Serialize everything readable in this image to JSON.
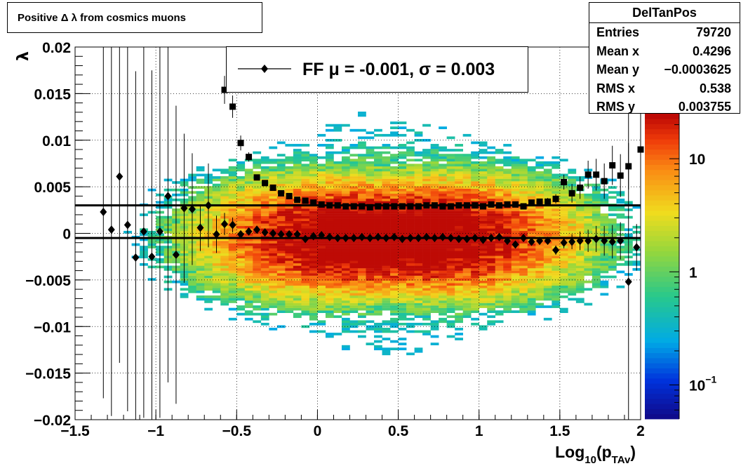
{
  "chart_data": {
    "type": "heatmap",
    "title": "Positive Δ λ from cosmics muons",
    "xlabel_main": "Log",
    "xlabel_sub1": "10",
    "xlabel_mid": "(p",
    "xlabel_sub2": "TAv",
    "xlabel_end": ")",
    "ylabel": "λ",
    "xlim": [
      -1.5,
      2.0
    ],
    "ylim": [
      -0.02,
      0.02
    ],
    "xticks": [
      {
        "v": -1.5,
        "label": "−1.5"
      },
      {
        "v": -1.0,
        "label": "−1"
      },
      {
        "v": -0.5,
        "label": "−0.5"
      },
      {
        "v": 0.0,
        "label": "0"
      },
      {
        "v": 0.5,
        "label": "0.5"
      },
      {
        "v": 1.0,
        "label": "1"
      },
      {
        "v": 1.5,
        "label": "1.5"
      },
      {
        "v": 2.0,
        "label": "2"
      }
    ],
    "yticks": [
      {
        "v": 0.02,
        "label": "0.02"
      },
      {
        "v": 0.015,
        "label": "0.015"
      },
      {
        "v": 0.01,
        "label": "0.01"
      },
      {
        "v": 0.005,
        "label": "0.005"
      },
      {
        "v": 0.0,
        "label": "0"
      },
      {
        "v": -0.005,
        "label": "−0.005"
      },
      {
        "v": -0.01,
        "label": "−0.01"
      },
      {
        "v": -0.015,
        "label": "−0.015"
      },
      {
        "v": -0.02,
        "label": "−0.02"
      }
    ],
    "grid": true,
    "colorbar": {
      "scale": "log",
      "zlim": [
        0.05,
        25
      ],
      "ticks": [
        {
          "v": 10,
          "label": "10",
          "sup": ""
        },
        {
          "v": 1,
          "label": "1",
          "sup": ""
        },
        {
          "v": 0.1,
          "label": "10",
          "sup": "−1"
        }
      ]
    },
    "stats": {
      "name": "DelTanPos",
      "rows": [
        {
          "label": "Entries",
          "value": "79720"
        },
        {
          "label": "Mean x",
          "value": "0.4296"
        },
        {
          "label": "Mean y",
          "value": "−0.0003625"
        },
        {
          "label": "RMS x",
          "value": "0.538"
        },
        {
          "label": "RMS y",
          "value": "0.003755"
        }
      ]
    },
    "legend": {
      "label": "FF μ = -0.001, σ =   0.003"
    },
    "hlines": [
      0.003,
      -0.0005
    ],
    "series": [
      {
        "marker": "diamond",
        "points": [
          [
            -1.325,
            0.0023,
            0.02
          ],
          [
            -1.275,
            0.0004,
            0.02
          ],
          [
            -1.225,
            0.0061,
            0.02
          ],
          [
            -1.175,
            0.0009,
            0.02
          ],
          [
            -1.125,
            -0.0026,
            0.02
          ],
          [
            -1.075,
            0.0002,
            0.02
          ],
          [
            -1.025,
            -0.0025,
            0.02
          ],
          [
            -0.975,
            0.0002,
            0.02
          ],
          [
            -0.925,
            0.004,
            0.02
          ],
          [
            -0.875,
            -0.0023,
            0.016
          ],
          [
            -0.825,
            0.0027,
            0.008
          ],
          [
            -0.775,
            0.0026,
            0.006
          ],
          [
            -0.725,
            0.0006,
            0.0025
          ],
          [
            -0.675,
            0.003,
            0.0045
          ],
          [
            -0.625,
            -0.0001,
            0.002
          ],
          [
            -0.575,
            0.001,
            0.0012
          ],
          [
            -0.525,
            0.0009,
            0.0008
          ],
          [
            -0.475,
            -0.0001,
            0.0004
          ],
          [
            -0.425,
            0.0002,
            0.0003
          ],
          [
            -0.375,
            0.0004,
            0.0002
          ],
          [
            -0.325,
            0.0001,
            0.0002
          ],
          [
            -0.275,
            0.0,
            0.0002
          ],
          [
            -0.225,
            -0.0001,
            0.0002
          ],
          [
            -0.175,
            -0.0001,
            0.0002
          ],
          [
            -0.125,
            -0.0001,
            0.0001
          ],
          [
            -0.075,
            -0.0006,
            0.0001
          ],
          [
            -0.025,
            -0.0003,
            0.0001
          ],
          [
            0.025,
            -0.0002,
            0.0001
          ],
          [
            0.075,
            -0.0004,
            0.0001
          ],
          [
            0.125,
            -0.0005,
            0.0001
          ],
          [
            0.175,
            -0.0005,
            0.0001
          ],
          [
            0.225,
            -0.0005,
            0.0001
          ],
          [
            0.275,
            -0.0004,
            0.0001
          ],
          [
            0.325,
            -0.0005,
            0.0001
          ],
          [
            0.375,
            -0.0004,
            0.0001
          ],
          [
            0.425,
            -0.0005,
            0.0001
          ],
          [
            0.475,
            -0.0004,
            0.0001
          ],
          [
            0.525,
            -0.0006,
            0.0001
          ],
          [
            0.575,
            -0.0005,
            0.0001
          ],
          [
            0.625,
            -0.0005,
            0.0001
          ],
          [
            0.675,
            -0.0004,
            0.0001
          ],
          [
            0.725,
            -0.0005,
            0.0001
          ],
          [
            0.775,
            -0.0004,
            0.0001
          ],
          [
            0.825,
            -0.0005,
            0.0001
          ],
          [
            0.875,
            -0.0006,
            0.0001
          ],
          [
            0.925,
            -0.0006,
            0.0001
          ],
          [
            0.975,
            -0.0005,
            0.0001
          ],
          [
            1.025,
            -0.0007,
            0.0002
          ],
          [
            1.075,
            -0.0005,
            0.0002
          ],
          [
            1.125,
            -0.0004,
            0.0002
          ],
          [
            1.175,
            -0.0008,
            0.0002
          ],
          [
            1.225,
            -0.0012,
            0.0002
          ],
          [
            1.275,
            -0.0005,
            0.0002
          ],
          [
            1.325,
            -0.0009,
            0.0003
          ],
          [
            1.375,
            -0.0008,
            0.0003
          ],
          [
            1.425,
            -0.0008,
            0.0004
          ],
          [
            1.475,
            -0.0018,
            0.0005
          ],
          [
            1.525,
            -0.001,
            0.0006
          ],
          [
            1.575,
            -0.0009,
            0.0008
          ],
          [
            1.625,
            -0.0008,
            0.001
          ],
          [
            1.675,
            -0.0008,
            0.0012
          ],
          [
            1.725,
            -0.0006,
            0.0014
          ],
          [
            1.775,
            -0.0008,
            0.0016
          ],
          [
            1.825,
            -0.0009,
            0.0018
          ],
          [
            1.875,
            -0.0008,
            0.002
          ],
          [
            1.925,
            -0.0052,
            0.02
          ],
          [
            1.975,
            -0.0015,
            0.0025
          ]
        ]
      },
      {
        "marker": "square",
        "points": [
          [
            -0.575,
            0.0154,
            0.0015
          ],
          [
            -0.525,
            0.0136,
            0.0012
          ],
          [
            -0.475,
            0.0097,
            0.0008
          ],
          [
            -0.425,
            0.0082,
            0.0005
          ],
          [
            -0.375,
            0.006,
            0.0003
          ],
          [
            -0.325,
            0.0054,
            0.0002
          ],
          [
            -0.275,
            0.0049,
            0.0002
          ],
          [
            -0.225,
            0.0043,
            0.0002
          ],
          [
            -0.175,
            0.004,
            0.0001
          ],
          [
            -0.125,
            0.0036,
            0.0001
          ],
          [
            -0.075,
            0.0035,
            0.0001
          ],
          [
            -0.025,
            0.0033,
            0.0001
          ],
          [
            0.025,
            0.0031,
            0.0001
          ],
          [
            0.075,
            0.003,
            0.0001
          ],
          [
            0.125,
            0.003,
            0.0001
          ],
          [
            0.175,
            0.0029,
            0.0001
          ],
          [
            0.225,
            0.0029,
            0.0001
          ],
          [
            0.275,
            0.0029,
            0.0001
          ],
          [
            0.325,
            0.0028,
            0.0001
          ],
          [
            0.375,
            0.0029,
            0.0001
          ],
          [
            0.425,
            0.0029,
            0.0001
          ],
          [
            0.475,
            0.0029,
            0.0001
          ],
          [
            0.525,
            0.0029,
            0.0001
          ],
          [
            0.575,
            0.0029,
            0.0001
          ],
          [
            0.625,
            0.0029,
            0.0001
          ],
          [
            0.675,
            0.003,
            0.0001
          ],
          [
            0.725,
            0.003,
            0.0001
          ],
          [
            0.775,
            0.0029,
            0.0001
          ],
          [
            0.825,
            0.0029,
            0.0001
          ],
          [
            0.875,
            0.003,
            0.0001
          ],
          [
            0.925,
            0.003,
            0.0001
          ],
          [
            0.975,
            0.003,
            0.0001
          ],
          [
            1.025,
            0.0029,
            0.0002
          ],
          [
            1.075,
            0.0031,
            0.0002
          ],
          [
            1.125,
            0.003,
            0.0002
          ],
          [
            1.175,
            0.0031,
            0.0002
          ],
          [
            1.225,
            0.0031,
            0.0002
          ],
          [
            1.275,
            0.0029,
            0.0002
          ],
          [
            1.325,
            0.0033,
            0.0003
          ],
          [
            1.375,
            0.0034,
            0.0003
          ],
          [
            1.425,
            0.0034,
            0.0004
          ],
          [
            1.475,
            0.0037,
            0.0005
          ],
          [
            1.525,
            0.0055,
            0.0008
          ],
          [
            1.575,
            0.0043,
            0.001
          ],
          [
            1.625,
            0.0049,
            0.0012
          ],
          [
            1.675,
            0.0063,
            0.0015
          ],
          [
            1.725,
            0.0063,
            0.0017
          ],
          [
            1.775,
            0.0056,
            0.0019
          ],
          [
            1.825,
            0.0073,
            0.0021
          ],
          [
            1.875,
            0.0062,
            0.0023
          ],
          [
            1.925,
            0.0072,
            0.0025
          ],
          [
            2.0,
            0.009,
            0.02
          ]
        ]
      }
    ]
  }
}
